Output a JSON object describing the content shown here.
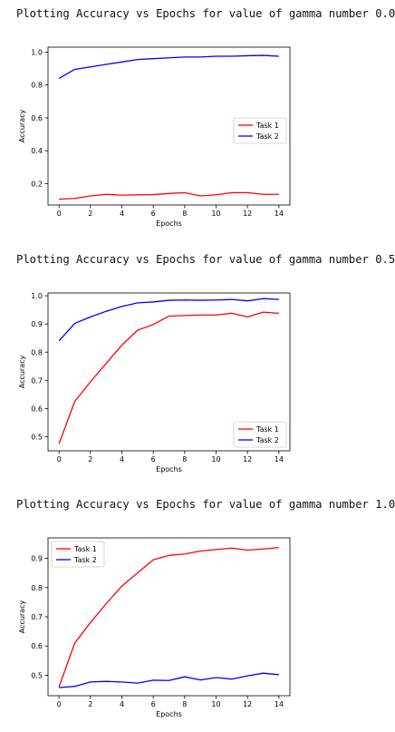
{
  "titles": [
    "Plotting Accuracy vs Epochs for value of gamma number 0.0",
    "Plotting Accuracy vs Epochs for value of gamma number 0.5",
    "Plotting Accuracy vs Epochs for value of gamma number 1.0"
  ],
  "colors": {
    "task1": "#ff0000",
    "task2": "#0000ff"
  },
  "chart_data": [
    {
      "type": "line",
      "title": "",
      "xlabel": "Epochs",
      "ylabel": "Accuracy",
      "xlim": [
        -0.7,
        14.7
      ],
      "ylim": [
        0.07,
        1.03
      ],
      "xticks": [
        0,
        2,
        4,
        6,
        8,
        10,
        12,
        14
      ],
      "yticks": [
        0.2,
        0.4,
        0.6,
        0.8,
        1.0
      ],
      "ytick_labels": [
        "0.2",
        "0.4",
        "0.6",
        "0.8",
        "1.0"
      ],
      "legend_position": "center-right",
      "x": [
        0,
        1,
        2,
        3,
        4,
        5,
        6,
        7,
        8,
        9,
        10,
        11,
        12,
        13,
        14
      ],
      "series": [
        {
          "name": "Task 1",
          "color": "#ff0000",
          "values": [
            0.105,
            0.11,
            0.125,
            0.135,
            0.13,
            0.132,
            0.133,
            0.14,
            0.145,
            0.125,
            0.132,
            0.145,
            0.145,
            0.135,
            0.135
          ]
        },
        {
          "name": "Task 2",
          "color": "#0000ff",
          "values": [
            0.84,
            0.895,
            0.91,
            0.925,
            0.94,
            0.955,
            0.96,
            0.965,
            0.97,
            0.97,
            0.975,
            0.975,
            0.978,
            0.98,
            0.975
          ]
        }
      ]
    },
    {
      "type": "line",
      "title": "",
      "xlabel": "Epochs",
      "ylabel": "Accuracy",
      "xlim": [
        -0.7,
        14.7
      ],
      "ylim": [
        0.45,
        1.01
      ],
      "xticks": [
        0,
        2,
        4,
        6,
        8,
        10,
        12,
        14
      ],
      "yticks": [
        0.5,
        0.6,
        0.7,
        0.8,
        0.9,
        1.0
      ],
      "ytick_labels": [
        "0.5",
        "0.6",
        "0.7",
        "0.8",
        "0.9",
        "1.0"
      ],
      "legend_position": "lower-right",
      "x": [
        0,
        1,
        2,
        3,
        4,
        5,
        6,
        7,
        8,
        9,
        10,
        11,
        12,
        13,
        14
      ],
      "series": [
        {
          "name": "Task 1",
          "color": "#ff0000",
          "values": [
            0.475,
            0.625,
            0.695,
            0.76,
            0.825,
            0.878,
            0.898,
            0.928,
            0.93,
            0.932,
            0.932,
            0.938,
            0.925,
            0.942,
            0.938
          ]
        },
        {
          "name": "Task 2",
          "color": "#0000ff",
          "values": [
            0.84,
            0.902,
            0.925,
            0.945,
            0.962,
            0.975,
            0.978,
            0.984,
            0.985,
            0.984,
            0.985,
            0.987,
            0.982,
            0.99,
            0.987
          ]
        }
      ]
    },
    {
      "type": "line",
      "title": "",
      "xlabel": "Epochs",
      "ylabel": "Accuracy",
      "xlim": [
        -0.7,
        14.7
      ],
      "ylim": [
        0.43,
        0.97
      ],
      "xticks": [
        0,
        2,
        4,
        6,
        8,
        10,
        12,
        14
      ],
      "yticks": [
        0.5,
        0.6,
        0.7,
        0.8,
        0.9
      ],
      "ytick_labels": [
        "0.5",
        "0.6",
        "0.7",
        "0.8",
        "0.9"
      ],
      "legend_position": "top-left",
      "x": [
        0,
        1,
        2,
        3,
        4,
        5,
        6,
        7,
        8,
        9,
        10,
        11,
        12,
        13,
        14
      ],
      "series": [
        {
          "name": "Task 1",
          "color": "#ff0000",
          "values": [
            0.46,
            0.61,
            0.68,
            0.745,
            0.805,
            0.85,
            0.895,
            0.91,
            0.915,
            0.925,
            0.93,
            0.935,
            0.928,
            0.932,
            0.937
          ]
        },
        {
          "name": "Task 2",
          "color": "#0000ff",
          "values": [
            0.458,
            0.462,
            0.477,
            0.479,
            0.477,
            0.473,
            0.483,
            0.482,
            0.495,
            0.484,
            0.492,
            0.487,
            0.498,
            0.507,
            0.502
          ]
        }
      ]
    }
  ]
}
